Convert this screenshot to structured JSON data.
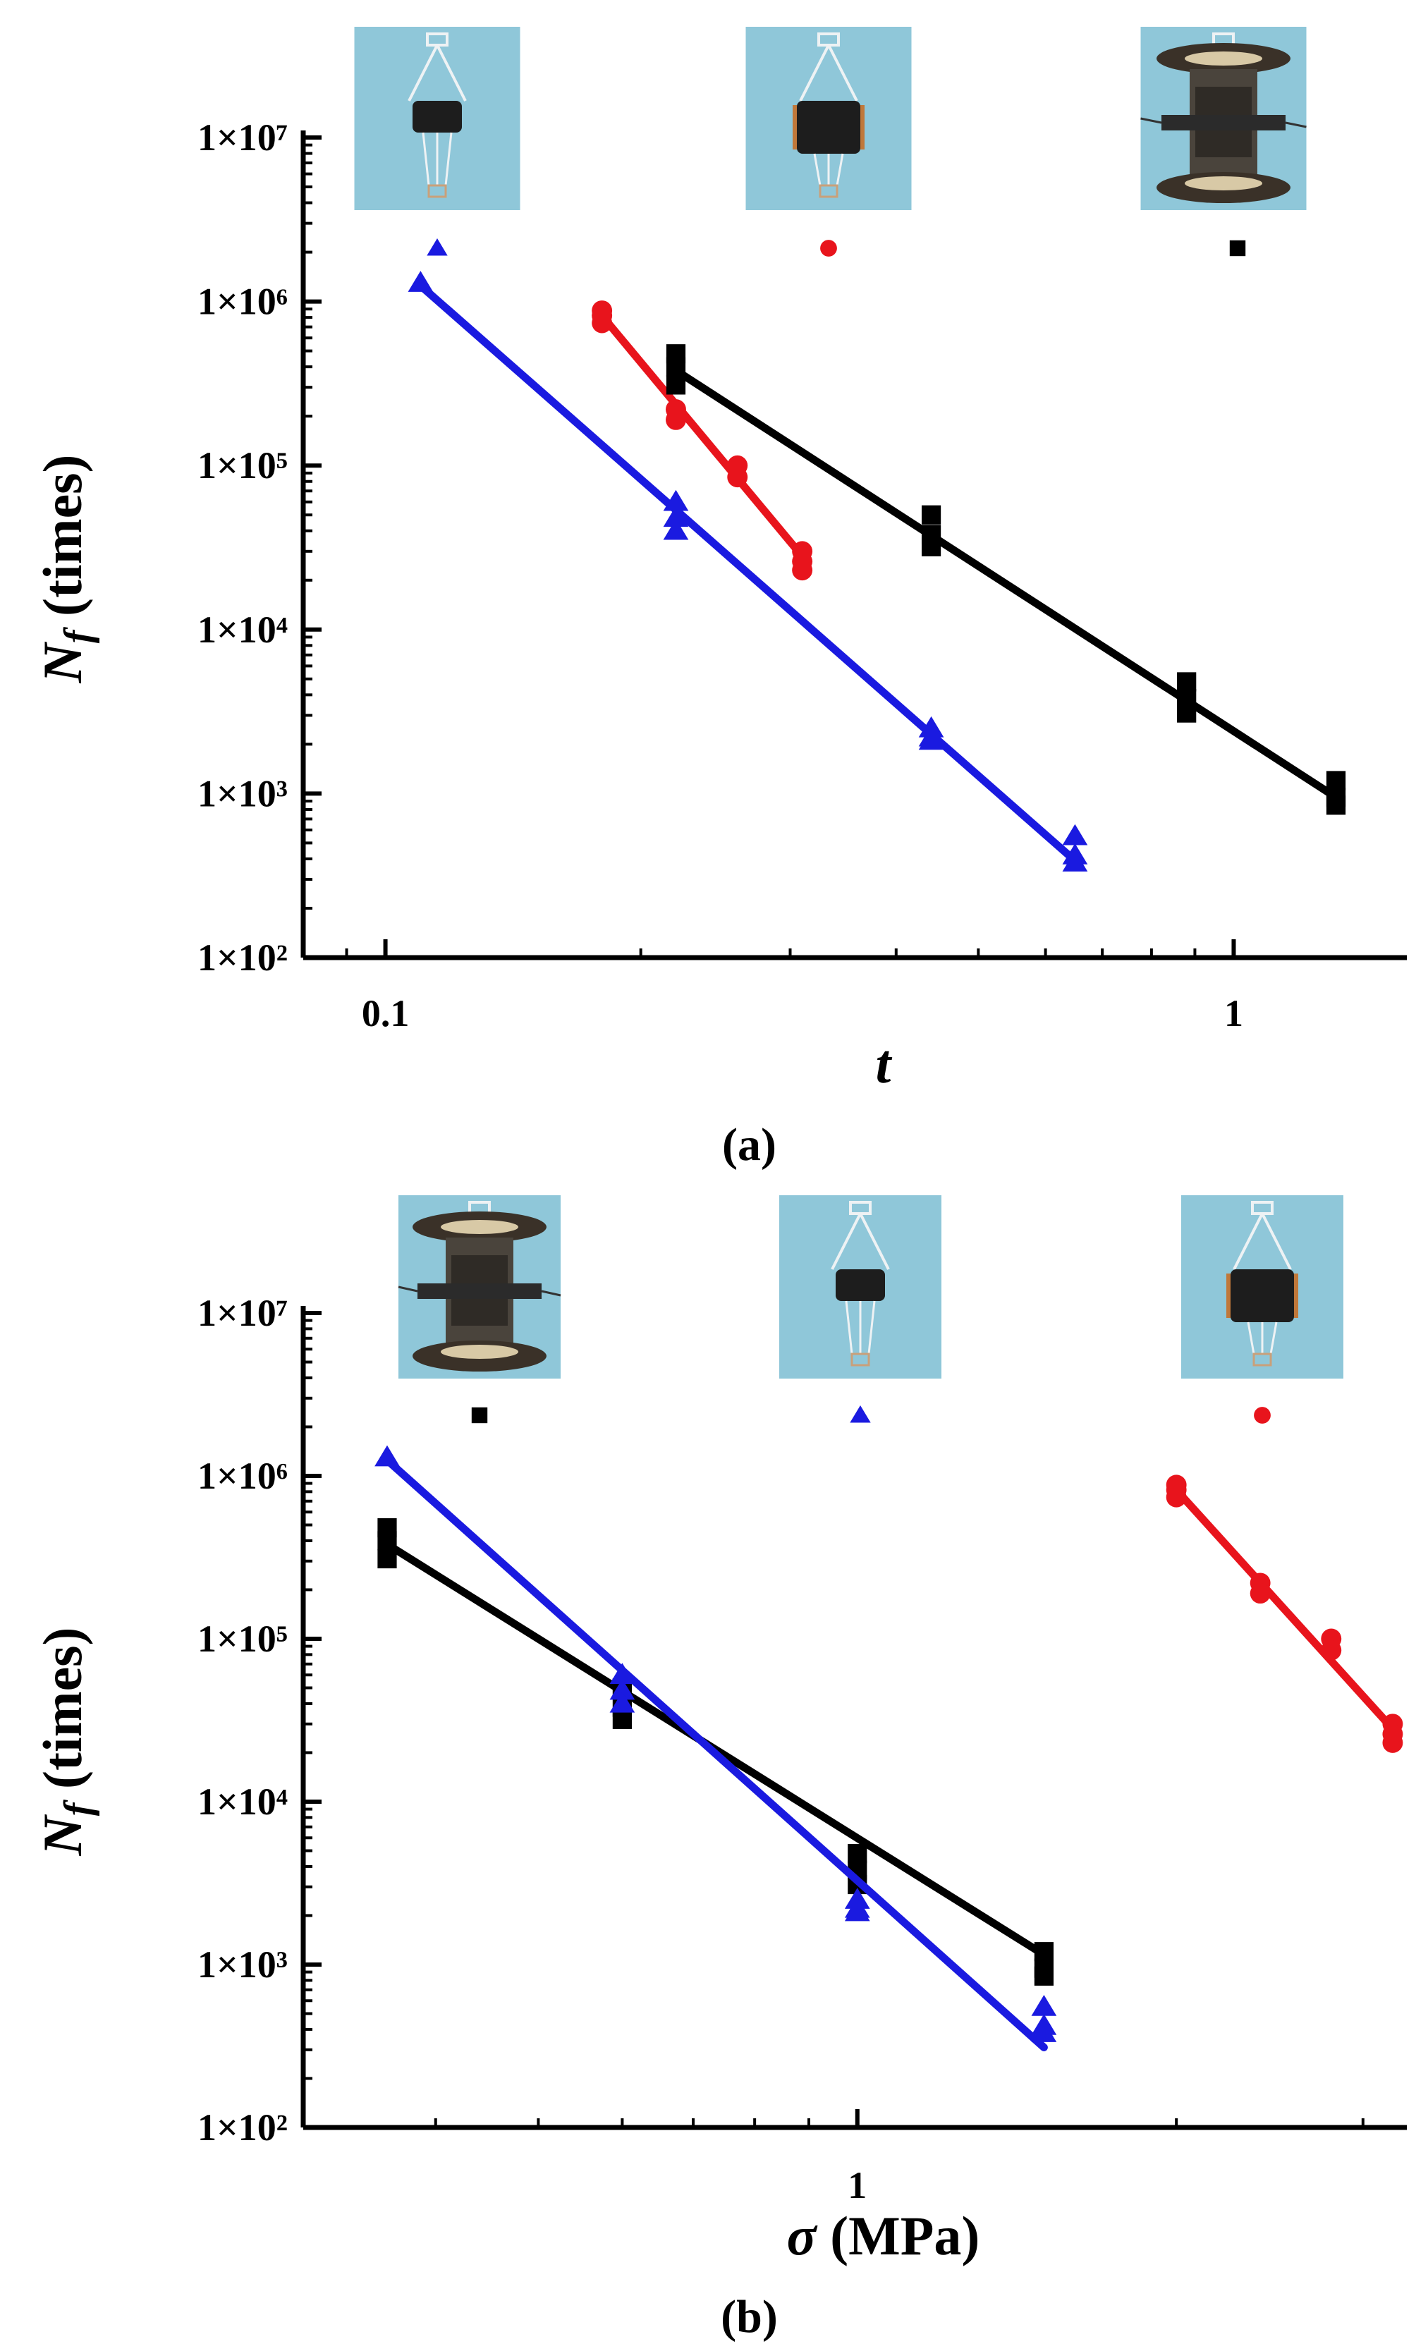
{
  "colors": {
    "black": "#000000",
    "red": "#e8141c",
    "blue": "#1a1ae0",
    "photo_bg": "#8fc7d9"
  },
  "chart_data": [
    {
      "type": "scatter",
      "panel_label": "(a)",
      "xlabel": "t",
      "ylabel_symbol": "N",
      "ylabel_subscript": "f",
      "ylabel_unit": " (times)",
      "xscale": "log",
      "yscale": "log",
      "xlim": [
        0.08,
        1.6
      ],
      "ylim": [
        100,
        10000000
      ],
      "x_ticks": [
        0.1,
        1
      ],
      "x_tick_labels": [
        "0.1",
        "1"
      ],
      "y_ticks": [
        100,
        1000,
        10000,
        100000,
        1000000,
        10000000
      ],
      "y_tick_labels": [
        "1×10²",
        "1×10³",
        "1×10⁴",
        "1×10⁵",
        "1×10⁶",
        "1×10⁷"
      ],
      "grid": false,
      "legend_placement": "top (specimen photographs with marker symbols)",
      "legend_order": [
        "triangle",
        "circle",
        "square"
      ],
      "series": [
        {
          "marker": "triangle",
          "color": "#1a1ae0",
          "points": [
            [
              0.11,
              1300000
            ],
            [
              0.22,
              60000
            ],
            [
              0.22,
              48000
            ],
            [
              0.22,
              40000
            ],
            [
              0.44,
              2500.0
            ],
            [
              0.44,
              2200
            ],
            [
              0.44,
              2100
            ],
            [
              0.65,
              550
            ],
            [
              0.65,
              420
            ],
            [
              0.65,
              380
            ]
          ],
          "fit": [
            [
              0.11,
              1250000
            ],
            [
              0.65,
              390
            ]
          ]
        },
        {
          "marker": "circle",
          "color": "#e8141c",
          "points": [
            [
              0.18,
              880000
            ],
            [
              0.18,
              820000
            ],
            [
              0.18,
              740000
            ],
            [
              0.22,
              220000
            ],
            [
              0.22,
              190000
            ],
            [
              0.26,
              100000
            ],
            [
              0.26,
              85000
            ],
            [
              0.31,
              30000
            ],
            [
              0.31,
              26000
            ],
            [
              0.31,
              23000
            ]
          ],
          "fit": [
            [
              0.18,
              820000
            ],
            [
              0.31,
              28000
            ]
          ]
        },
        {
          "marker": "square",
          "color": "#000000",
          "points": [
            [
              0.22,
              480000
            ],
            [
              0.22,
              400000
            ],
            [
              0.22,
              310000
            ],
            [
              0.44,
              50000
            ],
            [
              0.44,
              38000
            ],
            [
              0.44,
              32000
            ],
            [
              0.88,
              4800
            ],
            [
              0.88,
              3800
            ],
            [
              0.88,
              3100
            ],
            [
              1.32,
              1200
            ],
            [
              1.32,
              950
            ],
            [
              1.32,
              850
            ]
          ],
          "fit": [
            [
              0.22,
              380000
            ],
            [
              1.32,
              950
            ]
          ]
        }
      ]
    },
    {
      "type": "scatter",
      "panel_label": "(b)",
      "xlabel": "σ (MPa)",
      "ylabel_symbol": "N",
      "ylabel_subscript": "f",
      "ylabel_unit": " (times)",
      "xscale": "log",
      "yscale": "log",
      "xlim": [
        0.3,
        3.3
      ],
      "ylim": [
        100,
        10000000
      ],
      "x_ticks": [
        1
      ],
      "x_tick_labels": [
        "1"
      ],
      "y_ticks": [
        100,
        1000,
        10000,
        100000,
        1000000,
        10000000
      ],
      "y_tick_labels": [
        "1×10²",
        "1×10³",
        "1×10⁴",
        "1×10⁵",
        "1×10⁶",
        "1×10⁷"
      ],
      "grid": false,
      "legend_placement": "top (specimen photographs with marker symbols)",
      "legend_order": [
        "square",
        "triangle",
        "circle"
      ],
      "series": [
        {
          "marker": "square",
          "color": "#000000",
          "points": [
            [
              0.36,
              480000
            ],
            [
              0.36,
              400000
            ],
            [
              0.36,
              310000
            ],
            [
              0.6,
              50000
            ],
            [
              0.6,
              38000
            ],
            [
              0.6,
              32000
            ],
            [
              1.0,
              4800
            ],
            [
              1.0,
              3800
            ],
            [
              1.0,
              3100
            ],
            [
              1.5,
              1200
            ],
            [
              1.5,
              950
            ],
            [
              1.5,
              850
            ]
          ],
          "fit": [
            [
              0.36,
              380000
            ],
            [
              1.5,
              1150
            ]
          ]
        },
        {
          "marker": "triangle",
          "color": "#1a1ae0",
          "points": [
            [
              0.36,
              1300000
            ],
            [
              0.6,
              60000
            ],
            [
              0.6,
              48000
            ],
            [
              0.6,
              40000
            ],
            [
              1.0,
              2500
            ],
            [
              1.0,
              2200
            ],
            [
              1.0,
              2100
            ],
            [
              1.5,
              550
            ],
            [
              1.5,
              420
            ],
            [
              1.5,
              380
            ]
          ],
          "fit": [
            [
              0.36,
              1250000
            ],
            [
              1.5,
              310
            ]
          ]
        },
        {
          "marker": "circle",
          "color": "#e8141c",
          "points": [
            [
              2.0,
              880000
            ],
            [
              2.0,
              820000
            ],
            [
              2.0,
              740000
            ],
            [
              2.4,
              220000
            ],
            [
              2.4,
              190000
            ],
            [
              2.8,
              100000
            ],
            [
              2.8,
              85000
            ],
            [
              3.2,
              30000
            ],
            [
              3.2,
              26000
            ],
            [
              3.2,
              23000
            ]
          ],
          "fit": [
            [
              2.0,
              820000
            ],
            [
              3.2,
              28000
            ]
          ]
        }
      ]
    }
  ]
}
